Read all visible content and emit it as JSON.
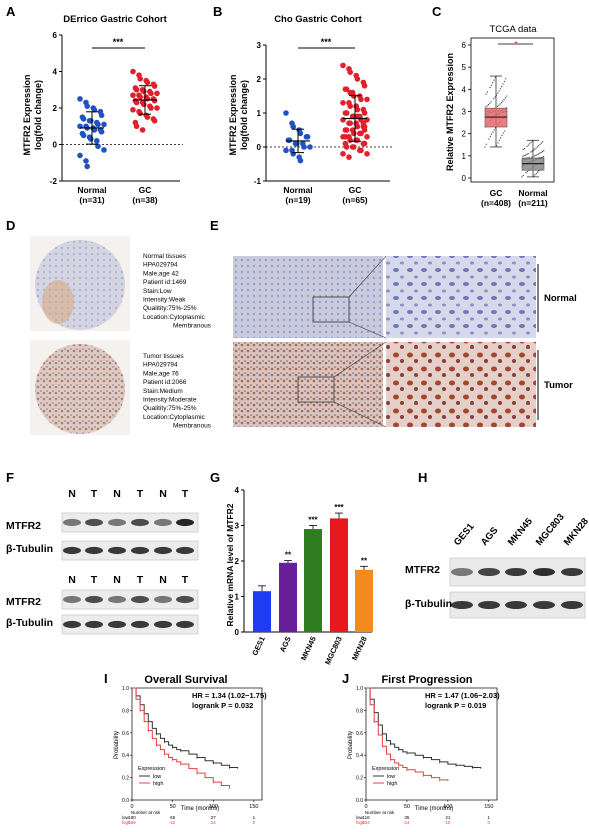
{
  "panels": {
    "A": {
      "letter": "A",
      "title": "DErrico Gastric Cohort",
      "ylabel_line1": "MTFR2 Expression",
      "ylabel_line2": "log(fold change)",
      "sig": "***",
      "groups": [
        {
          "name": "Normal",
          "n": "(n=31)"
        },
        {
          "name": "GC",
          "n": "(n=38)"
        }
      ],
      "yticks": [
        "-2",
        "0",
        "2",
        "4",
        "6"
      ]
    },
    "B": {
      "letter": "B",
      "title": "Cho Gastric Cohort",
      "ylabel_line1": "MTFR2 Expression",
      "ylabel_line2": "log(fold change)",
      "sig": "***",
      "groups": [
        {
          "name": "Normal",
          "n": "(n=19)"
        },
        {
          "name": "GC",
          "n": "(n=65)"
        }
      ],
      "yticks": [
        "-1",
        "0",
        "1",
        "2",
        "3"
      ]
    },
    "C": {
      "letter": "C",
      "title": "TCGA data",
      "ylabel": "Relative MTFR2 Expression",
      "sig": "*",
      "groups": [
        {
          "name": "GC",
          "n": "(n=408)"
        },
        {
          "name": "Normal",
          "n": "(n=211)"
        }
      ],
      "yticks": [
        "0",
        "1",
        "2",
        "3",
        "4",
        "5",
        "6"
      ]
    },
    "D": {
      "letter": "D",
      "normal_text": [
        "Normal tissues",
        "HPA029794",
        "Male,age 42",
        "Patient id:1469",
        "Stain:Low",
        "Intensity:Weak",
        "Qualitity:75%-25%",
        "Location:Cytoplasmic",
        "Membranous"
      ],
      "tumor_text": [
        "Tumor tissues",
        "HPA029794",
        "Male,age 76",
        "Patient id:2066",
        "Stain:Medium",
        "Intensity:Moderate",
        "Qualitity:75%-25%",
        "Location:Cytoplasmic",
        "Membranous"
      ]
    },
    "E": {
      "letter": "E",
      "normal_label": "Normal",
      "tumor_label": "Tumor"
    },
    "F": {
      "letter": "F",
      "lanes": [
        "N",
        "T",
        "N",
        "T",
        "N",
        "T"
      ],
      "row_labels": [
        "MTFR2",
        "β-Tubulin",
        "MTFR2",
        "β-Tubulin"
      ]
    },
    "G": {
      "letter": "G",
      "ylabel": "Relative mRNA level of MTFR2",
      "yticks": [
        "0",
        "1",
        "2",
        "3",
        "4"
      ]
    },
    "H": {
      "letter": "H",
      "lanes": [
        "GES1",
        "AGS",
        "MKN45",
        "MGC803",
        "MKN28"
      ],
      "row_labels": [
        "MTFR2",
        "β-Tubulin"
      ]
    },
    "I": {
      "letter": "I",
      "title": "Overall Survival",
      "hr": "HR = 1.34 (1.02−1.75)",
      "logrank": "logrank P = 0.032",
      "xlabel": "Time (months)",
      "ylabel": "Probability",
      "legend_title": "Expression",
      "legend_low": "low",
      "legend_high": "high",
      "risk_title": "Number at risk",
      "risk_low": [
        "low",
        "180",
        "65",
        "27",
        "1"
      ],
      "risk_high": [
        "high",
        "166",
        "42",
        "14",
        "0"
      ],
      "xticks": [
        "0",
        "50",
        "100",
        "150"
      ],
      "yticks": [
        "0.0",
        "0.2",
        "0.4",
        "0.6",
        "0.8",
        "1.0"
      ]
    },
    "J": {
      "letter": "J",
      "title": "First Progression",
      "hr": "HR = 1.47 (1.06−2.03)",
      "logrank": "logrank P = 0.019",
      "xlabel": "Time (months)",
      "ylabel": "Probability",
      "legend_title": "Expression",
      "legend_low": "low",
      "legend_high": "high",
      "risk_title": "Number at risk",
      "risk_low": [
        "low",
        "116",
        "35",
        "21",
        "1"
      ],
      "risk_high": [
        "high",
        "104",
        "24",
        "10",
        "0"
      ],
      "xticks": [
        "0",
        "50",
        "100",
        "150"
      ],
      "yticks": [
        "0.0",
        "0.2",
        "0.4",
        "0.6",
        "0.8",
        "1.0"
      ]
    }
  },
  "chart_data": [
    {
      "type": "scatter",
      "ylim": [
        -2,
        6
      ],
      "series": [
        {
          "values": [
            2.5,
            2.3,
            2.1,
            2.0,
            1.9,
            1.8,
            1.6,
            1.5,
            1.4,
            1.3,
            1.3,
            1.2,
            1.1,
            1.1,
            1.0,
            1.0,
            0.9,
            0.9,
            0.8,
            0.8,
            0.7,
            0.6,
            0.5,
            0.4,
            0.3,
            0.2,
            -0.1,
            -0.3,
            -0.6,
            -0.9,
            -1.2
          ],
          "color": "#2152c4"
        },
        {
          "values": [
            4.0,
            3.8,
            3.6,
            3.5,
            3.4,
            3.3,
            3.2,
            3.1,
            3.0,
            3.0,
            2.9,
            2.9,
            2.8,
            2.8,
            2.7,
            2.7,
            2.6,
            2.6,
            2.5,
            2.5,
            2.4,
            2.4,
            2.3,
            2.3,
            2.2,
            2.1,
            2.0,
            2.0,
            1.9,
            1.8,
            1.7,
            1.6,
            1.5,
            1.4,
            1.3,
            1.2,
            1.0,
            0.8
          ],
          "color": "#e0202a"
        }
      ]
    },
    {
      "type": "scatter",
      "ylim": [
        -1,
        3
      ],
      "series": [
        {
          "values": [
            1.0,
            0.7,
            0.6,
            0.5,
            0.4,
            0.3,
            0.3,
            0.2,
            0.2,
            0.1,
            0.1,
            0.1,
            0.0,
            0.0,
            -0.1,
            -0.1,
            -0.2,
            -0.3,
            -0.4
          ],
          "color": "#2152c4"
        },
        {
          "values": [
            2.4,
            2.3,
            2.2,
            2.1,
            2.0,
            1.9,
            1.8,
            1.7,
            1.7,
            1.6,
            1.5,
            1.5,
            1.4,
            1.4,
            1.3,
            1.3,
            1.2,
            1.2,
            1.1,
            1.1,
            1.0,
            1.0,
            1.0,
            0.9,
            0.9,
            0.9,
            0.8,
            0.8,
            0.8,
            0.7,
            0.7,
            0.7,
            0.6,
            0.6,
            0.6,
            0.5,
            0.5,
            0.5,
            0.4,
            0.4,
            0.4,
            0.3,
            0.3,
            0.3,
            0.2,
            0.2,
            0.2,
            0.1,
            0.1,
            0.1,
            0.0,
            0.0,
            0.0,
            -0.1,
            -0.1,
            -0.2,
            -0.2,
            -0.3,
            1.6,
            1.2,
            0.9,
            0.7,
            0.5,
            0.3,
            1.0
          ],
          "color": "#e0202a"
        }
      ]
    },
    {
      "type": "box",
      "ylim": [
        0,
        6
      ],
      "series": [
        {
          "q1": 2.3,
          "median": 2.75,
          "q3": 3.15,
          "whisker_low": 1.4,
          "whisker_high": 4.6,
          "color": "#e8676b"
        },
        {
          "q1": 0.35,
          "median": 0.65,
          "q3": 0.9,
          "whisker_low": 0.05,
          "whisker_high": 1.7,
          "color": "#8a8a8a"
        }
      ]
    },
    {
      "type": "bar",
      "categories": [
        "GES1",
        "AGS",
        "MKN45",
        "MGC803",
        "MKN28"
      ],
      "values": [
        1.15,
        1.95,
        2.9,
        3.2,
        1.75
      ],
      "errors": [
        0.15,
        0.06,
        0.1,
        0.15,
        0.1
      ],
      "significance": [
        "",
        "**",
        "***",
        "***",
        "**"
      ],
      "colors": [
        "#1f3cf0",
        "#6a1f9a",
        "#2e7d1e",
        "#e8191d",
        "#f28a1e"
      ],
      "ylim": [
        0,
        4
      ]
    },
    {
      "type": "line",
      "xlim": [
        0,
        160
      ],
      "ylim": [
        0,
        1
      ],
      "series": [
        {
          "name": "low",
          "color": "#333333",
          "x": [
            0,
            5,
            10,
            15,
            20,
            25,
            30,
            35,
            40,
            45,
            50,
            55,
            60,
            70,
            80,
            90,
            100,
            110,
            120,
            130
          ],
          "values": [
            1.0,
            0.93,
            0.85,
            0.77,
            0.7,
            0.64,
            0.59,
            0.55,
            0.52,
            0.49,
            0.47,
            0.45,
            0.44,
            0.41,
            0.38,
            0.35,
            0.33,
            0.31,
            0.29,
            0.28
          ]
        },
        {
          "name": "high",
          "color": "#e84040",
          "x": [
            0,
            5,
            10,
            15,
            20,
            25,
            30,
            35,
            40,
            45,
            50,
            55,
            60,
            70,
            80,
            90,
            100,
            110,
            120
          ],
          "values": [
            1.0,
            0.9,
            0.8,
            0.7,
            0.62,
            0.55,
            0.49,
            0.45,
            0.41,
            0.38,
            0.36,
            0.34,
            0.32,
            0.28,
            0.24,
            0.2,
            0.16,
            0.13,
            0.11
          ]
        }
      ]
    },
    {
      "type": "line",
      "xlim": [
        0,
        160
      ],
      "ylim": [
        0,
        1
      ],
      "series": [
        {
          "name": "low",
          "color": "#333333",
          "x": [
            0,
            5,
            10,
            15,
            20,
            25,
            30,
            35,
            40,
            45,
            50,
            60,
            70,
            80,
            90,
            100,
            110,
            120,
            130,
            140
          ],
          "values": [
            1.0,
            0.9,
            0.78,
            0.67,
            0.59,
            0.53,
            0.5,
            0.47,
            0.45,
            0.43,
            0.42,
            0.4,
            0.38,
            0.36,
            0.34,
            0.32,
            0.31,
            0.3,
            0.29,
            0.28
          ]
        },
        {
          "name": "high",
          "color": "#e84040",
          "x": [
            0,
            5,
            10,
            15,
            20,
            25,
            30,
            35,
            40,
            45,
            50,
            60,
            70,
            80,
            90,
            100
          ],
          "values": [
            1.0,
            0.85,
            0.7,
            0.58,
            0.48,
            0.41,
            0.36,
            0.33,
            0.31,
            0.29,
            0.27,
            0.25,
            0.22,
            0.2,
            0.18,
            0.17
          ]
        }
      ]
    }
  ]
}
